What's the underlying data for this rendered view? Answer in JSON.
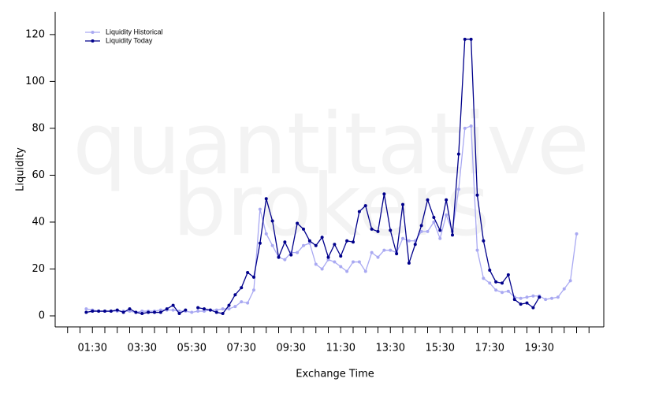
{
  "chart_data": {
    "type": "line",
    "watermark": [
      "quantitative",
      "brokers"
    ],
    "xlabel": "Exchange Time",
    "ylabel": "Liquidity",
    "x": [
      1.25,
      1.5,
      1.75,
      2,
      2.25,
      2.5,
      2.75,
      3,
      3.25,
      3.5,
      3.75,
      4,
      4.25,
      4.5,
      4.75,
      5,
      5.25,
      5.5,
      5.75,
      6,
      6.25,
      6.5,
      6.75,
      7,
      7.25,
      7.5,
      7.75,
      8,
      8.25,
      8.5,
      8.75,
      9,
      9.25,
      9.5,
      9.75,
      10,
      10.25,
      10.5,
      10.75,
      11,
      11.25,
      11.5,
      11.75,
      12,
      12.25,
      12.5,
      12.75,
      13,
      13.25,
      13.5,
      13.75,
      14,
      14.25,
      14.5,
      14.75,
      15,
      15.25,
      15.5,
      15.75,
      16,
      16.25,
      16.5,
      16.75,
      17,
      17.25,
      17.5,
      17.75,
      18,
      18.25,
      18.5,
      18.75,
      19,
      19.25,
      19.5,
      19.75,
      20,
      20.25,
      20.5,
      20.75,
      21
    ],
    "series": [
      {
        "name": "Liquidity Historical",
        "color": "#a9a9f2",
        "values": [
          3,
          2.5,
          2,
          2,
          2,
          2,
          2,
          2,
          1.5,
          2,
          2,
          2,
          2.5,
          2.5,
          2.5,
          2,
          2,
          1.5,
          2,
          2,
          2.5,
          2.5,
          3,
          3,
          4,
          6,
          5.5,
          11,
          45.5,
          35,
          30,
          25,
          24,
          27,
          27,
          30,
          31,
          22,
          20,
          24,
          23,
          21,
          19,
          23,
          23,
          19,
          27,
          25,
          28,
          28,
          27,
          33,
          32,
          32,
          36,
          36,
          40,
          33,
          43,
          36,
          54,
          80,
          81,
          28,
          16,
          14,
          11,
          10,
          10.5,
          8,
          7.5,
          8,
          8.5,
          8.5,
          7,
          7.5,
          8,
          11.5,
          15,
          35
        ]
      },
      {
        "name": "Liquidity Today",
        "color": "#00008b",
        "values": [
          1.5,
          2,
          2,
          2,
          2,
          2.5,
          1.5,
          3,
          1.5,
          1,
          1.5,
          1.5,
          1.5,
          3,
          4.5,
          1,
          2.5,
          null,
          3.5,
          3,
          2.5,
          1.5,
          1,
          4.5,
          9,
          12,
          18.5,
          16.5,
          31,
          50,
          40.5,
          25,
          31.5,
          26,
          39.5,
          37,
          32,
          30,
          33.5,
          25,
          30.5,
          25.5,
          32,
          31.5,
          44.5,
          47,
          37,
          36,
          52,
          36.5,
          26.5,
          47.5,
          22.5,
          30.5,
          38.5,
          49.5,
          42,
          36.5,
          49.5,
          34.5,
          69,
          118,
          118,
          51.5,
          32,
          19.5,
          14.5,
          14,
          17.5,
          7,
          5,
          5.5,
          3.5,
          8,
          null,
          null,
          null,
          null,
          null,
          null
        ]
      }
    ],
    "xlim": [
      0,
      22
    ],
    "xticks": [
      {
        "value": 1.5,
        "label": "01:30"
      },
      {
        "value": 3.5,
        "label": "03:30"
      },
      {
        "value": 5.5,
        "label": "05:30"
      },
      {
        "value": 7.5,
        "label": "07:30"
      },
      {
        "value": 9.5,
        "label": "09:30"
      },
      {
        "value": 11.5,
        "label": "11:30"
      },
      {
        "value": 13.5,
        "label": "13:30"
      },
      {
        "value": 15.5,
        "label": "15:30"
      },
      {
        "value": 17.5,
        "label": "17:30"
      },
      {
        "value": 19.5,
        "label": "19:30"
      }
    ],
    "xminor_ticks": [
      0.5,
      1,
      2,
      2.5,
      3,
      4,
      4.5,
      5,
      6,
      6.5,
      7,
      8,
      8.5,
      9,
      10,
      10.5,
      11,
      12,
      12.5,
      13,
      14,
      14.5,
      15,
      16,
      16.5,
      17,
      18,
      18.5,
      19,
      20,
      20.5,
      21,
      21.5
    ],
    "ylim": [
      -4.7,
      129.7
    ],
    "yticks": [
      0,
      20,
      40,
      60,
      80,
      100,
      120
    ],
    "legend": "upper-left"
  }
}
